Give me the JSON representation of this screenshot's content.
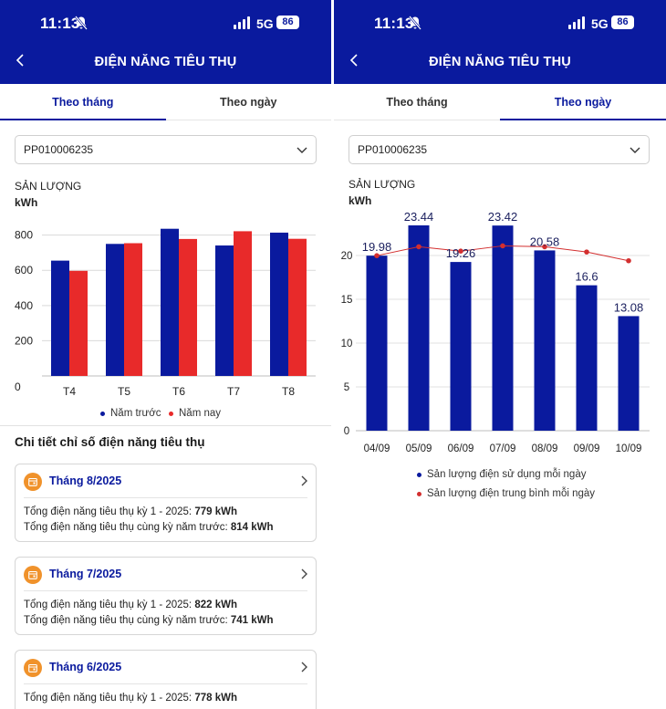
{
  "status_bar": {
    "time": "11:13",
    "network": "5G",
    "battery": "86"
  },
  "header": {
    "title": "ĐIỆN NĂNG TIÊU THỤ"
  },
  "tabs": [
    {
      "label": "Theo tháng"
    },
    {
      "label": "Theo ngày"
    }
  ],
  "left": {
    "active_tab": 0,
    "account": {
      "selected": "PP010006235"
    },
    "chart_label": "SẢN LƯỢNG",
    "chart_unit": "kWh",
    "legend": [
      {
        "label": "Năm trước",
        "color": "#0a1a9e"
      },
      {
        "label": "Năm nay",
        "color": "#e82a2a"
      }
    ],
    "section_title": "Chi tiết chỉ số điện năng tiêu thụ",
    "cards": [
      {
        "month": "Tháng 8/2025",
        "line1_label": "Tổng điện năng tiêu thụ kỳ 1 - 2025: ",
        "line1_value": "779 kWh",
        "line2_label": "Tổng điện năng tiêu thụ cùng kỳ năm trước: ",
        "line2_value": "814 kWh"
      },
      {
        "month": "Tháng 7/2025",
        "line1_label": "Tổng điện năng tiêu thụ kỳ 1 - 2025: ",
        "line1_value": "822 kWh",
        "line2_label": "Tổng điện năng tiêu thụ cùng kỳ năm trước: ",
        "line2_value": "741 kWh"
      },
      {
        "month": "Tháng 6/2025",
        "line1_label": "Tổng điện năng tiêu thụ kỳ 1 - 2025: ",
        "line1_value": "778 kWh",
        "line2_label": "",
        "line2_value": ""
      }
    ]
  },
  "right": {
    "active_tab": 1,
    "account": {
      "selected": "PP010006235"
    },
    "chart_label": "SẢN LƯỢNG",
    "chart_unit": "kWh",
    "legend": [
      {
        "label": "Sản lượng điện sử dụng mỗi ngày",
        "color": "#0a1a9e"
      },
      {
        "label": "Sản lượng điện trung bình mỗi ngày",
        "color": "#d32f2f"
      }
    ]
  },
  "colors": {
    "brand": "#0a1a9e",
    "accent_red": "#e82a2a",
    "avg_line": "#d32f2f",
    "calendar": "#f0922b"
  },
  "icons": {
    "back": "chevron-left-icon",
    "dropdown": "chevron-down-icon",
    "card_arrow": "chevron-right-icon",
    "calendar": "calendar-icon",
    "bell": "bell-slash-icon"
  },
  "chart_data": [
    {
      "type": "bar",
      "categories": [
        "T4",
        "T5",
        "T6",
        "T7",
        "T8"
      ],
      "series": [
        {
          "name": "Năm trước",
          "values": [
            655,
            750,
            836,
            741,
            814
          ]
        },
        {
          "name": "Năm nay",
          "values": [
            597,
            754,
            778,
            822,
            779
          ]
        }
      ],
      "ylim": [
        0,
        850
      ],
      "yticks": [
        0,
        200,
        400,
        600,
        800
      ],
      "grid": true,
      "legend": "bottom"
    },
    {
      "type": "bar",
      "categories": [
        "04/09",
        "05/09",
        "06/09",
        "07/09",
        "08/09",
        "09/09",
        "10/09"
      ],
      "series": [
        {
          "name": "Sản lượng điện sử dụng mỗi ngày",
          "values": [
            19.98,
            23.44,
            19.26,
            23.42,
            20.58,
            16.6,
            13.08
          ]
        },
        {
          "name": "Sản lượng điện trung bình mỗi ngày",
          "type": "line",
          "values": [
            19.98,
            21.0,
            20.5,
            21.1,
            21.0,
            20.4,
            19.4
          ]
        }
      ],
      "data_labels": [
        "19.98",
        "23.44",
        "19.26",
        "23.42",
        "20.58",
        "16.6",
        "13.08"
      ],
      "ylim": [
        0,
        25
      ],
      "yticks": [
        0,
        5,
        10,
        15,
        20
      ],
      "grid": true,
      "legend": "bottom"
    }
  ]
}
